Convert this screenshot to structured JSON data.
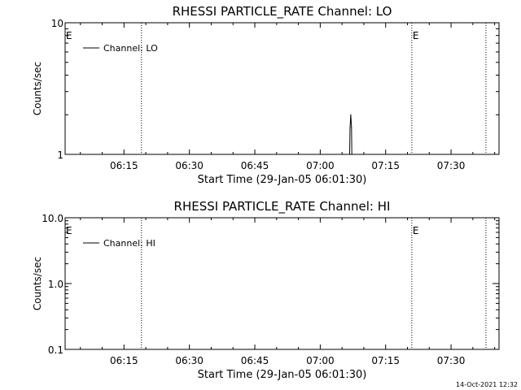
{
  "timestamp": "14-Oct-2021 12:32",
  "chart_data": [
    {
      "type": "line",
      "title": "RHESSI PARTICLE_RATE Channel: LO",
      "xlabel": "Start Time (29-Jan-05 06:01:30)",
      "ylabel": "Counts/sec",
      "ylog": true,
      "ylim": [
        1,
        10
      ],
      "ytick_values": [
        1,
        10
      ],
      "ytick_labels": [
        "1",
        "10"
      ],
      "xlim": [
        "06:01:30",
        "07:41:00"
      ],
      "xtick_labels": [
        "06:15",
        "06:30",
        "06:45",
        "07:00",
        "07:15",
        "07:30"
      ],
      "markers": [
        {
          "label": "E",
          "time": "06:01:30",
          "line": false
        },
        {
          "label": "",
          "time": "06:19:00",
          "line": true
        },
        {
          "label": "E",
          "time": "07:21:00",
          "line": true
        },
        {
          "label": "",
          "time": "07:38:00",
          "line": true
        }
      ],
      "legend": {
        "entries": [
          "Channel: LO"
        ],
        "position": "top-left"
      },
      "series": [
        {
          "name": "Channel: LO",
          "x": [
            "07:06:45",
            "07:06:50",
            "07:07:00",
            "07:07:10",
            "07:07:15"
          ],
          "y": [
            1,
            1.6,
            2.0,
            1.6,
            1
          ]
        }
      ]
    },
    {
      "type": "line",
      "title": "RHESSI PARTICLE_RATE Channel: HI",
      "xlabel": "Start Time (29-Jan-05 06:01:30)",
      "ylabel": "Counts/sec",
      "ylog": true,
      "ylim": [
        0.1,
        10
      ],
      "ytick_values": [
        0.1,
        1,
        10
      ],
      "ytick_labels": [
        "0.1",
        "1.0",
        "10.0"
      ],
      "xlim": [
        "06:01:30",
        "07:41:00"
      ],
      "xtick_labels": [
        "06:15",
        "06:30",
        "06:45",
        "07:00",
        "07:15",
        "07:30"
      ],
      "markers": [
        {
          "label": "E",
          "time": "06:01:30",
          "line": false
        },
        {
          "label": "",
          "time": "06:19:00",
          "line": true
        },
        {
          "label": "E",
          "time": "07:21:00",
          "line": true
        },
        {
          "label": "",
          "time": "07:38:00",
          "line": true
        }
      ],
      "legend": {
        "entries": [
          "Channel: HI"
        ],
        "position": "top-left"
      },
      "series": [
        {
          "name": "Channel: HI",
          "x": [],
          "y": []
        }
      ]
    }
  ]
}
